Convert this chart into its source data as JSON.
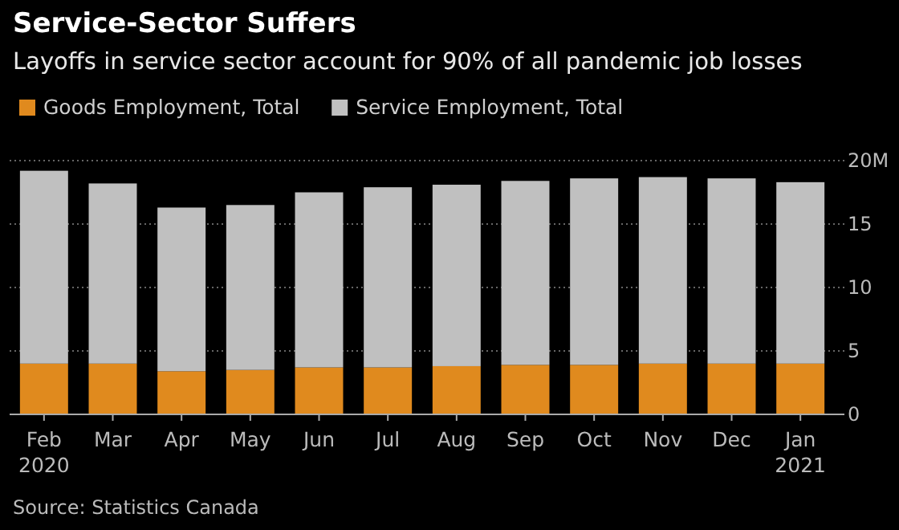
{
  "chart_data": {
    "type": "bar",
    "title": "Service-Sector Suffers",
    "subtitle": "Layoffs in service sector account for 90% of all pandemic job losses",
    "categories": [
      "Feb\n2020",
      "Mar",
      "Apr",
      "May",
      "Jun",
      "Jul",
      "Aug",
      "Sep",
      "Oct",
      "Nov",
      "Dec",
      "Jan\n2021"
    ],
    "series": [
      {
        "name": "Goods Employment, Total",
        "color": "#e08a1e",
        "values": [
          4.0,
          4.0,
          3.4,
          3.5,
          3.7,
          3.7,
          3.8,
          3.9,
          3.9,
          4.0,
          4.0,
          4.0
        ]
      },
      {
        "name": "Service Employment, Total",
        "color": "#c0c0c0",
        "values": [
          15.2,
          14.2,
          12.9,
          13.0,
          13.8,
          14.2,
          14.3,
          14.5,
          14.7,
          14.7,
          14.6,
          14.3
        ]
      }
    ],
    "stacked": true,
    "ylim": [
      0,
      20
    ],
    "yticks": [
      0,
      5,
      10,
      15,
      {
        "value": 20,
        "label": "20M"
      }
    ],
    "grid": "y",
    "legend": "top left",
    "annotations": [
      "Source: Statistics Canada"
    ]
  }
}
